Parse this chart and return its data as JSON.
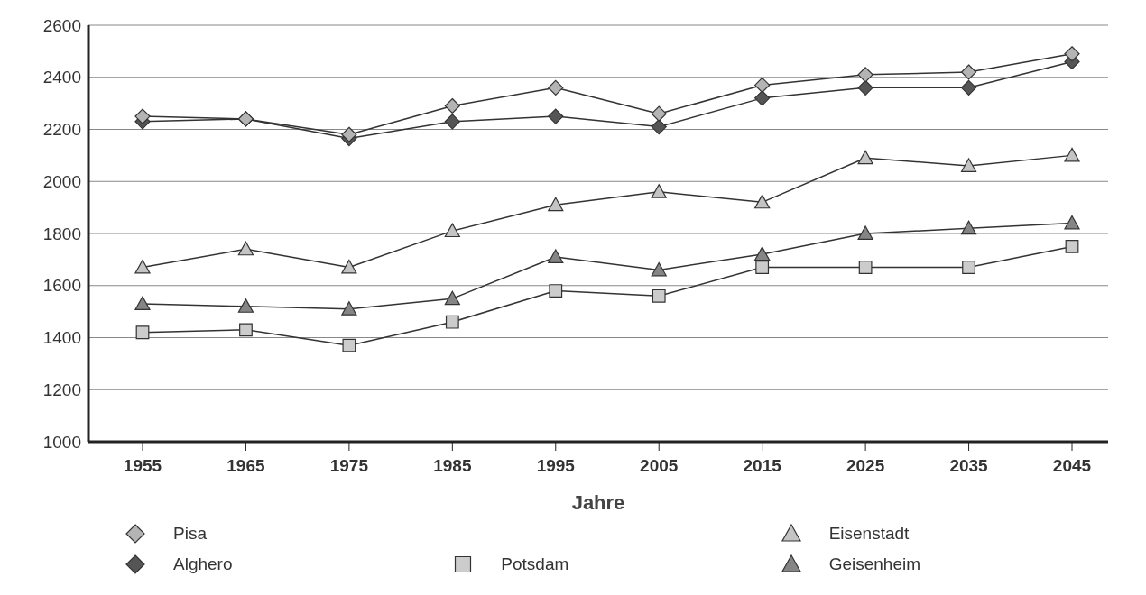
{
  "chart_data": {
    "type": "line",
    "xlabel": "Jahre",
    "categories": [
      "1955",
      "1965",
      "1975",
      "1985",
      "1995",
      "2005",
      "2015",
      "2025",
      "2035",
      "2045"
    ],
    "series": [
      {
        "name": "Pisa",
        "color": "#b4b4b4",
        "marker": "diamond",
        "values": [
          2250,
          2240,
          2180,
          2290,
          2360,
          2260,
          2370,
          2410,
          2420,
          2490
        ]
      },
      {
        "name": "Alghero",
        "color": "#555555",
        "marker": "diamond",
        "values": [
          2230,
          2240,
          2165,
          2230,
          2250,
          2210,
          2320,
          2360,
          2360,
          2460
        ]
      },
      {
        "name": "Eisenstadt",
        "color": "#c4c4c4",
        "marker": "triangle",
        "values": [
          1670,
          1740,
          1670,
          1810,
          1910,
          1960,
          1920,
          2090,
          2060,
          2100
        ]
      },
      {
        "name": "Geisenheim",
        "color": "#858585",
        "marker": "triangle",
        "values": [
          1530,
          1520,
          1510,
          1550,
          1710,
          1660,
          1720,
          1800,
          1820,
          1840
        ]
      },
      {
        "name": "Potsdam",
        "color": "#cccccc",
        "marker": "square",
        "values": [
          1420,
          1430,
          1370,
          1460,
          1580,
          1560,
          1670,
          1670,
          1670,
          1750
        ]
      }
    ],
    "ylim": [
      1000,
      2600
    ],
    "yticks": [
      1000,
      1200,
      1400,
      1600,
      1800,
      2000,
      2200,
      2400,
      2600
    ],
    "grid": "y",
    "legend": "bottom"
  }
}
